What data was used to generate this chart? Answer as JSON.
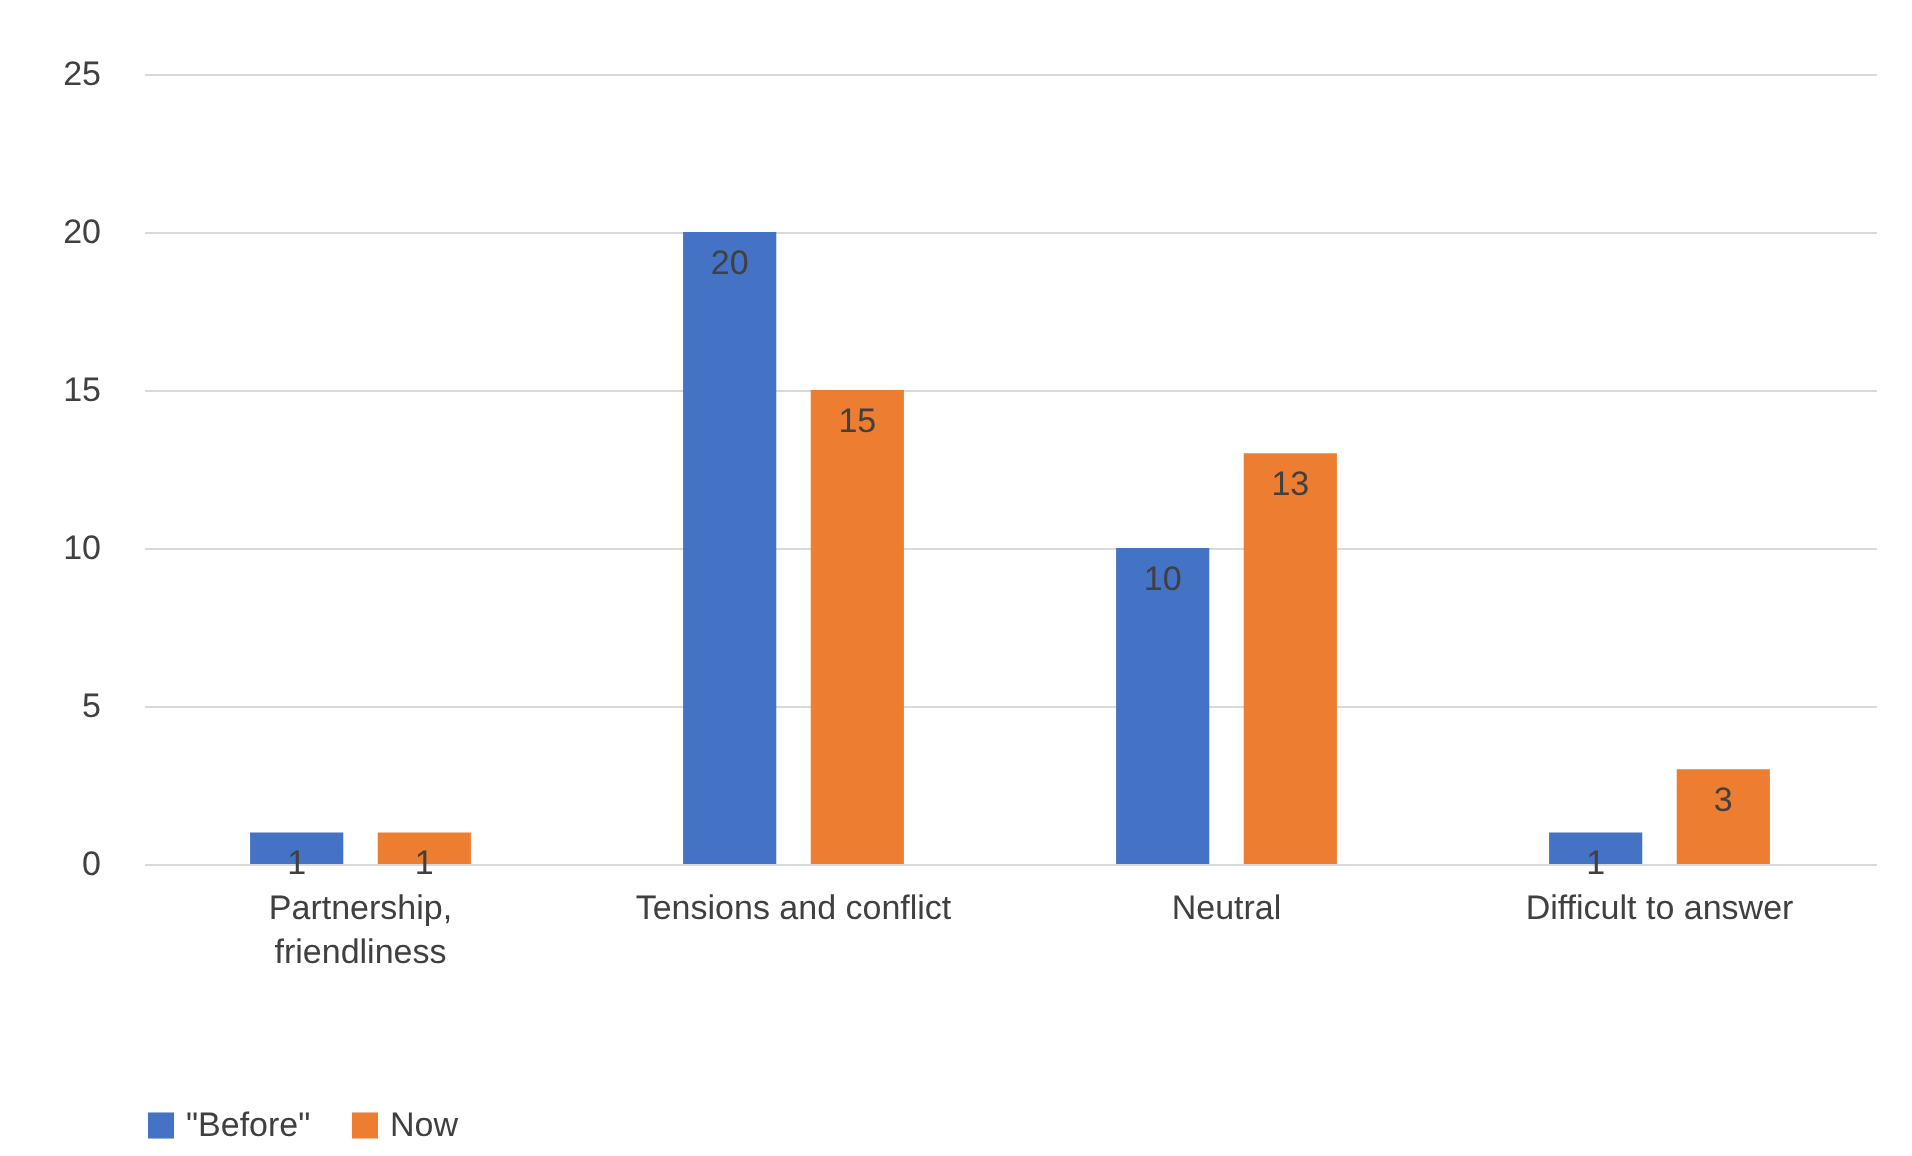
{
  "chart_data": {
    "type": "bar",
    "categories": [
      "Partnership, friendliness",
      "Tensions and conflict",
      "Neutral",
      "Difficult to answer"
    ],
    "series": [
      {
        "name": "\"Before\"",
        "color": "#4472c4",
        "values": [
          1,
          20,
          10,
          1
        ]
      },
      {
        "name": "Now",
        "color": "#ed7d31",
        "values": [
          1,
          15,
          13,
          3
        ]
      }
    ],
    "ylim": [
      0,
      25
    ],
    "yticks": [
      0,
      5,
      10,
      15,
      20,
      25
    ],
    "grid": "y",
    "legend": "bottom",
    "data_labels": true
  }
}
